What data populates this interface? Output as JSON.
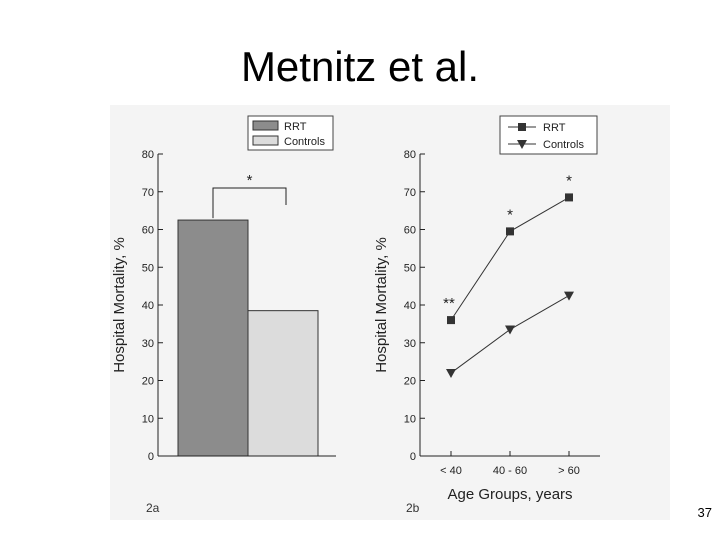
{
  "slide": {
    "title": "Metnitz et al.",
    "page_number": "37"
  },
  "colors": {
    "rrt_bar": "#8c8c8c",
    "controls_bar": "#dcdcdc",
    "line": "#333333",
    "scan_background": "#f4f4f4"
  },
  "chart_data": [
    {
      "type": "bar",
      "panel_label": "2a",
      "categories": [
        "RRT",
        "Controls"
      ],
      "values": [
        62.5,
        38.5
      ],
      "ylabel": "Hospital Mortality, %",
      "xlabel": "",
      "ylim": [
        0,
        80
      ],
      "yticks": [
        0,
        10,
        20,
        30,
        40,
        50,
        60,
        70,
        80
      ],
      "ytick_labels": [
        "0",
        "10",
        "20",
        "30",
        "40",
        "50",
        "60",
        "70",
        "80"
      ],
      "legend": {
        "position": "top-right",
        "entries": [
          "RRT",
          "Controls"
        ]
      },
      "annotations": [
        {
          "text": "*",
          "bracket": [
            "RRT",
            "Controls"
          ]
        }
      ],
      "grid": false
    },
    {
      "type": "line",
      "panel_label": "2b",
      "categories": [
        "< 40",
        "40 - 60",
        "> 60"
      ],
      "series": [
        {
          "name": "RRT",
          "marker": "square",
          "values": [
            36,
            59.5,
            68.5
          ],
          "labels": [
            "**",
            "*",
            "*"
          ]
        },
        {
          "name": "Controls",
          "marker": "triangle-down",
          "values": [
            22,
            33.5,
            42.5
          ],
          "labels": [
            "",
            "",
            ""
          ]
        }
      ],
      "ylabel": "Hospital Mortality, %",
      "xlabel": "Age Groups, years",
      "ylim": [
        0,
        80
      ],
      "yticks": [
        0,
        10,
        20,
        30,
        40,
        50,
        60,
        70,
        80
      ],
      "ytick_labels": [
        "0",
        "10",
        "20",
        "30",
        "40",
        "50",
        "60",
        "70",
        "80"
      ],
      "legend": {
        "position": "top-right",
        "entries": [
          "RRT",
          "Controls"
        ]
      },
      "grid": false
    }
  ]
}
